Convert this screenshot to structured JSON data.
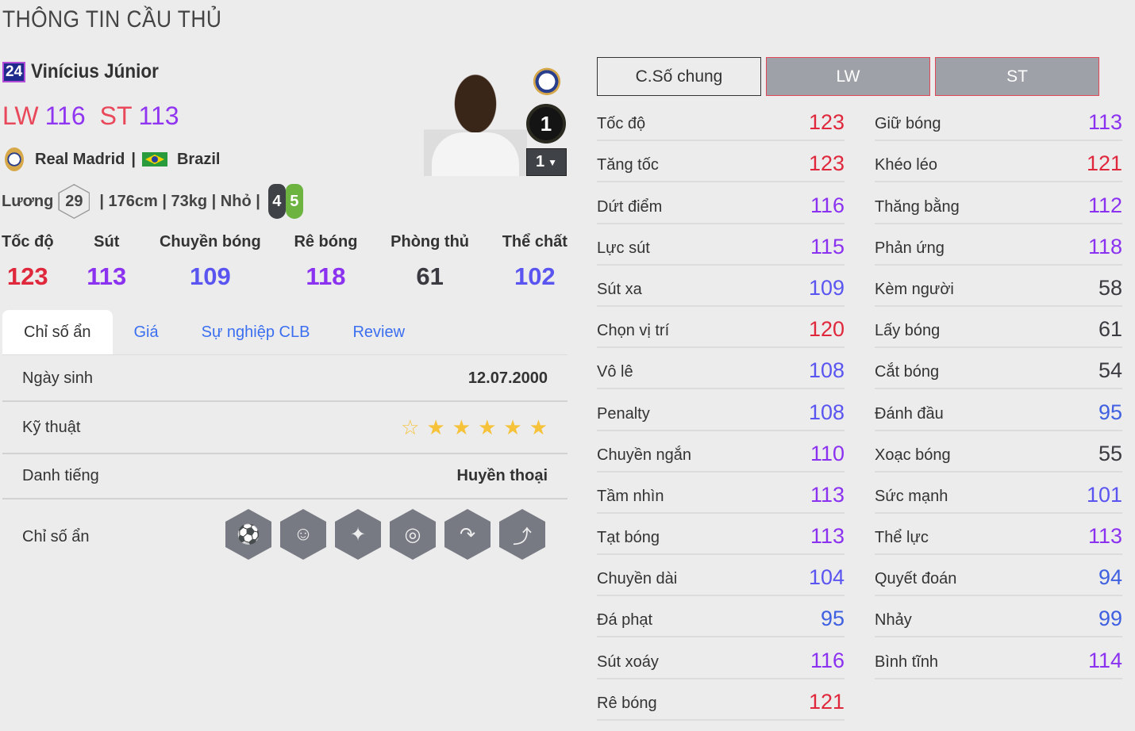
{
  "title": "THÔNG TIN CẦU THỦ",
  "player": {
    "season_badge": "24",
    "name": "Vinícius Júnior",
    "positions": [
      {
        "pos": "LW",
        "ovr": "116"
      },
      {
        "pos": "ST",
        "ovr": "113"
      }
    ],
    "club": "Real Madrid",
    "sep": "|",
    "nation": "Brazil",
    "salary_label": "Lương",
    "salary": "29",
    "info": "| 176cm | 73kg | Nhỏ |",
    "left_foot": "4",
    "right_foot": "5",
    "grade": "1",
    "level": "1"
  },
  "summary": [
    {
      "label": "Tốc độ",
      "value": "123"
    },
    {
      "label": "Sút",
      "value": "113"
    },
    {
      "label": "Chuyền bóng",
      "value": "109"
    },
    {
      "label": "Rê bóng",
      "value": "118"
    },
    {
      "label": "Phòng thủ",
      "value": "61"
    },
    {
      "label": "Thể chất",
      "value": "102"
    }
  ],
  "tabs": [
    "Chỉ số ẩn",
    "Giá",
    "Sự nghiệp CLB",
    "Review"
  ],
  "details": {
    "birth_label": "Ngày sinh",
    "birth": "12.07.2000",
    "skill_label": "Kỹ thuật",
    "skill_stars": 5,
    "skill_max": 6,
    "rep_label": "Danh tiếng",
    "rep": "Huyền thoại",
    "traits_label": "Chỉ số ẩn",
    "traits": [
      "finesse-shot-icon",
      "flair-icon",
      "speed-dribbler-icon",
      "technical-dribbler-icon",
      "outside-foot-shot-icon",
      "playmaker-icon"
    ]
  },
  "position_tabs": [
    "C.Số chung",
    "LW",
    "ST"
  ],
  "stats_left": [
    [
      "Tốc độ",
      "123"
    ],
    [
      "Tăng tốc",
      "123"
    ],
    [
      "Dứt điểm",
      "116"
    ],
    [
      "Lực sút",
      "115"
    ],
    [
      "Sút xa",
      "109"
    ],
    [
      "Chọn vị trí",
      "120"
    ],
    [
      "Vô lê",
      "108"
    ],
    [
      "Penalty",
      "108"
    ],
    [
      "Chuyền ngắn",
      "110"
    ],
    [
      "Tầm nhìn",
      "113"
    ],
    [
      "Tạt bóng",
      "113"
    ],
    [
      "Chuyền dài",
      "104"
    ],
    [
      "Đá phạt",
      "95"
    ],
    [
      "Sút xoáy",
      "116"
    ],
    [
      "Rê bóng",
      "121"
    ]
  ],
  "stats_right": [
    [
      "Giữ bóng",
      "113"
    ],
    [
      "Khéo léo",
      "121"
    ],
    [
      "Thăng bằng",
      "112"
    ],
    [
      "Phản ứng",
      "118"
    ],
    [
      "Kèm người",
      "58"
    ],
    [
      "Lấy bóng",
      "61"
    ],
    [
      "Cắt bóng",
      "54"
    ],
    [
      "Đánh đầu",
      "95"
    ],
    [
      "Xoạc bóng",
      "55"
    ],
    [
      "Sức mạnh",
      "101"
    ],
    [
      "Thể lực",
      "113"
    ],
    [
      "Quyết đoán",
      "94"
    ],
    [
      "Nhảy",
      "99"
    ],
    [
      "Bình tĩnh",
      "114"
    ]
  ],
  "colors": {
    "tier120": "#e0283c",
    "tier110": "#8b32f0",
    "tier100": "#5a55f0",
    "tier90": "#3f60e0",
    "low": "#3a3a40",
    "pos_label": "#e8485a",
    "tab_link": "#3b6ff0",
    "star": "#f5c23a",
    "foot_left": "#3f4247",
    "foot_right": "#6cb33f"
  }
}
